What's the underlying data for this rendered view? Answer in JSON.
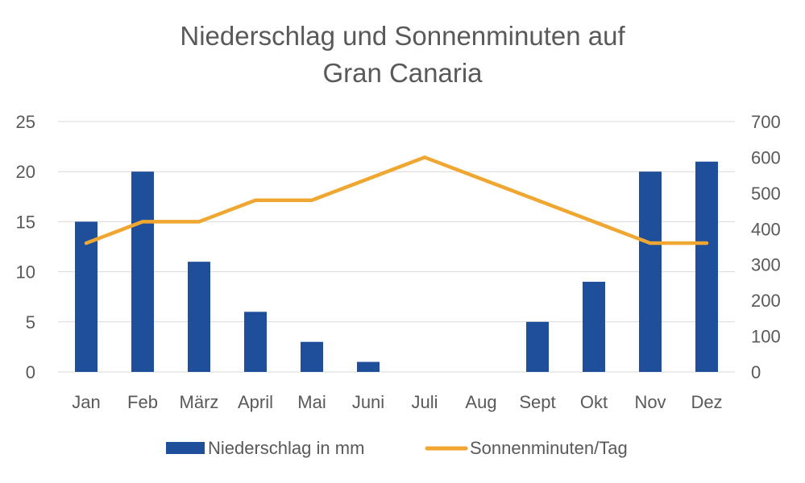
{
  "chart_data": {
    "type": "bar",
    "title_lines": [
      "Niederschlag und Sonnenminuten auf",
      "Gran Canaria"
    ],
    "categories": [
      "Jan",
      "Feb",
      "März",
      "April",
      "Mai",
      "Juni",
      "Juli",
      "Aug",
      "Sept",
      "Okt",
      "Nov",
      "Dez"
    ],
    "series": [
      {
        "name": "Niederschlag in mm",
        "type": "bar",
        "axis": "left",
        "color": "#1f4e9a",
        "values": [
          15,
          20,
          11,
          6,
          3,
          1,
          0,
          0,
          5,
          9,
          20,
          21
        ]
      },
      {
        "name": "Sonnenminuten/Tag",
        "type": "line",
        "axis": "right",
        "color": "#f0a731",
        "values": [
          360,
          420,
          420,
          480,
          480,
          540,
          600,
          540,
          480,
          420,
          360,
          360
        ]
      }
    ],
    "y_left": {
      "min": 0,
      "max": 25,
      "ticks": [
        0,
        5,
        10,
        15,
        20,
        25
      ]
    },
    "y_right": {
      "min": 0,
      "max": 700,
      "ticks": [
        0,
        100,
        200,
        300,
        400,
        500,
        600,
        700
      ]
    },
    "grid": true,
    "gridColor": "#d9d9d9",
    "legend_position": "bottom"
  }
}
